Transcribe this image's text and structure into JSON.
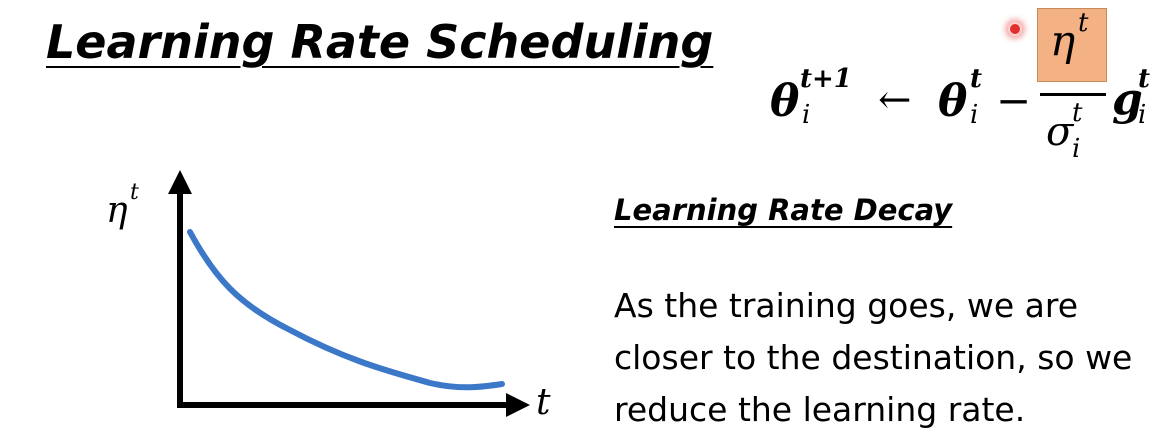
{
  "slide": {
    "title": "Learning Rate Scheduling",
    "formula": {
      "lhs_theta": "θ",
      "lhs_sup": "t+1",
      "lhs_sub": "i",
      "arrow": "←",
      "rhs_theta": "θ",
      "rhs_sup": "t",
      "rhs_sub": "i",
      "minus": "−",
      "numerator_eta": "η",
      "numerator_sup": "t",
      "denominator_sigma": "σ",
      "denominator_sup": "t",
      "denominator_sub": "i",
      "g": "g",
      "g_sup": "t",
      "g_sub": "i",
      "highlight_color": "#f4b183"
    },
    "graph": {
      "y_axis_label": "η",
      "y_axis_sup": "t",
      "x_axis_label": "t",
      "curve_color": "#3c78c8",
      "curve_shape": "decreasing-decay"
    },
    "subheading": "Learning Rate Decay",
    "body_lines": [
      "As the training goes, we are",
      "closer to the destination, so we",
      "reduce the learning rate."
    ]
  }
}
